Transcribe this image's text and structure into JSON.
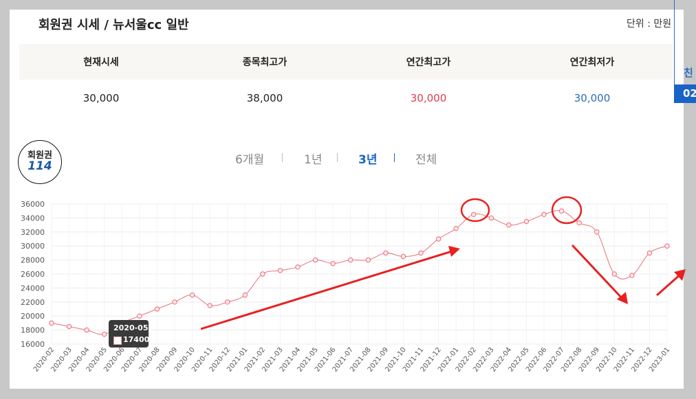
{
  "header": {
    "title": "회원권 시세 / 뉴서울cc 일반",
    "unit": "단위 : 만원"
  },
  "summary": {
    "headers": [
      "현재시세",
      "종목최고가",
      "연간최고가",
      "연간최저가"
    ],
    "values": [
      "30,000",
      "38,000",
      "30,000",
      "30,000"
    ],
    "value_colors": [
      "#222222",
      "#222222",
      "#e03a4e",
      "#2a6cbb"
    ]
  },
  "side": {
    "text": "친",
    "box": "02"
  },
  "badge": {
    "top": "회원권",
    "number": "114"
  },
  "tabs": [
    "6개월",
    "1년",
    "3년",
    "전체"
  ],
  "active_tab": "3년",
  "tooltip": {
    "title": "2020-05",
    "value": "17400"
  },
  "colors": {
    "line": "#e8707c",
    "accent_blue": "#1a63c6",
    "annotation": "#e82020"
  },
  "chart_data": {
    "type": "line",
    "categories": [
      "2020-02",
      "2020-03",
      "2020-04",
      "2020-05",
      "2020-06",
      "2020-07",
      "2020-08",
      "2020-09",
      "2020-10",
      "2020-11",
      "2020-12",
      "2021-01",
      "2021-02",
      "2021-03",
      "2021-04",
      "2021-05",
      "2021-06",
      "2021-07",
      "2021-08",
      "2021-09",
      "2021-10",
      "2021-11",
      "2021-12",
      "2022-01",
      "2022-02",
      "2022-03",
      "2022-04",
      "2022-05",
      "2022-06",
      "2022-07",
      "2022-08",
      "2022-09",
      "2022-10",
      "2022-11",
      "2022-12",
      "2023-01"
    ],
    "series": [
      {
        "values": [
          19000,
          18500,
          18000,
          17400,
          19000,
          20000,
          21000,
          22000,
          23000,
          21500,
          22000,
          23000,
          26000,
          26500,
          27000,
          28000,
          27500,
          28000,
          28000,
          29000,
          28500,
          29000,
          31000,
          32500,
          34500,
          34000,
          33000,
          33500,
          34500,
          35000,
          33300,
          32000,
          26000,
          25800,
          29000,
          30000
        ]
      }
    ],
    "ylim": [
      16000,
      36000
    ],
    "yticks": [
      "36000",
      "34000",
      "32000",
      "30000",
      "28000",
      "26000",
      "24000",
      "22000",
      "20000",
      "18000",
      "16000"
    ],
    "grid": true,
    "legend": "none"
  }
}
